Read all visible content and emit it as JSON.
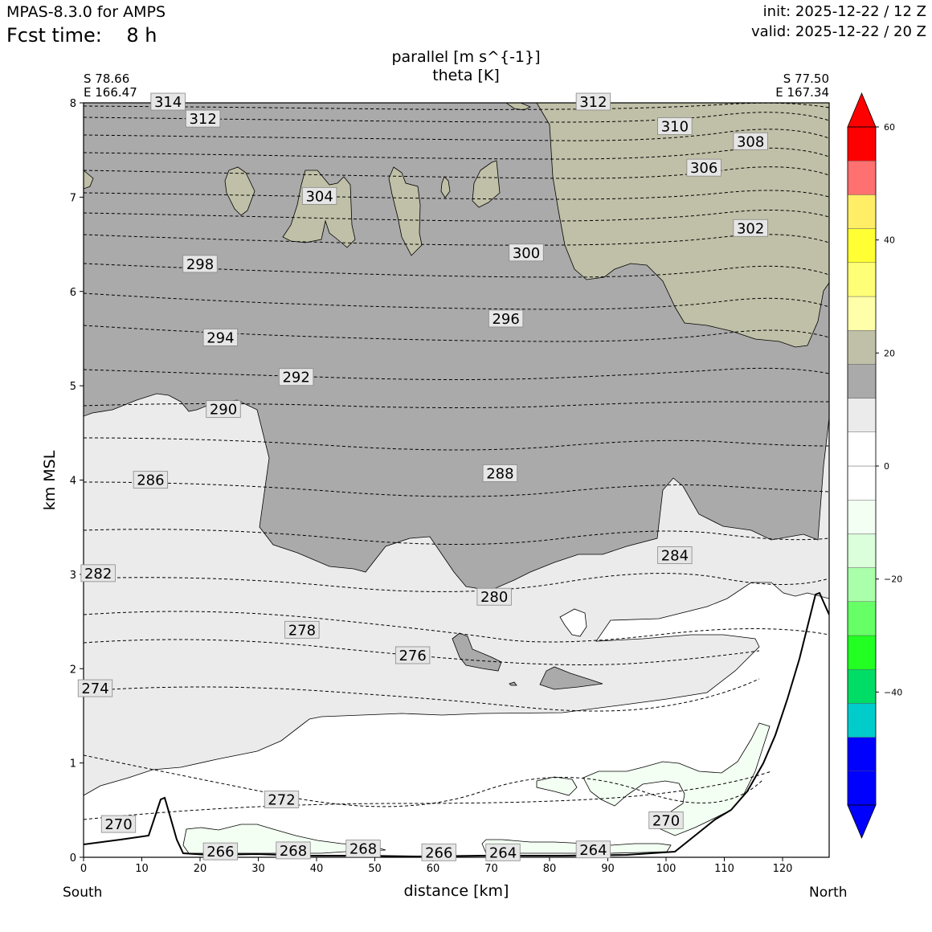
{
  "header": {
    "model": "MPAS-8.3.0 for AMPS",
    "fcst_time": "Fcst time:    8 h",
    "init": "init: 2025-12-22 / 12 Z",
    "valid": "valid: 2025-12-22 / 20 Z"
  },
  "chart_data": {
    "type": "contour",
    "title": "parallel [m s^{-1}]",
    "subtitle": "theta [K]",
    "xlabel": "distance [km]",
    "ylabel": "km MSL",
    "xlim": [
      0,
      128
    ],
    "ylim": [
      0,
      8
    ],
    "x_ticks": [
      0,
      10,
      20,
      30,
      40,
      50,
      60,
      70,
      80,
      90,
      100,
      110,
      120
    ],
    "y_ticks": [
      0,
      1,
      2,
      3,
      4,
      5,
      6,
      7,
      8
    ],
    "left_end": {
      "lat": "S 78.66",
      "lon": "E 166.47",
      "label": "South"
    },
    "right_end": {
      "lat": "S 77.50",
      "lon": "E 167.34",
      "label": "North"
    },
    "colorbar": {
      "ticks": [
        60,
        40,
        20,
        0,
        -20,
        -40
      ],
      "tick_labels": [
        "60",
        "40",
        "20",
        "0",
        "−20",
        "−40"
      ],
      "colors": [
        "#0000ff",
        "#0000ff",
        "#00cccc",
        "#00dd66",
        "#22ff22",
        "#66ff66",
        "#aaffaa",
        "#dbffdb",
        "#f3fff3",
        "#ffffff",
        "#ffffff",
        "#ebebeb",
        "#aaaaaa",
        "#c0c0a8",
        "#ffffaa",
        "#ffff77",
        "#ffff33",
        "#ffee66",
        "#ff7070",
        "#ff0000"
      ],
      "extend": "both"
    },
    "theta_labels": [
      {
        "value": "314",
        "x": 14.5,
        "y": 8.0
      },
      {
        "value": "312",
        "x": 20.5,
        "y": 7.82
      },
      {
        "value": "312",
        "x": 87.5,
        "y": 8.0
      },
      {
        "value": "310",
        "x": 101.5,
        "y": 7.74
      },
      {
        "value": "308",
        "x": 114.5,
        "y": 7.58
      },
      {
        "value": "306",
        "x": 106.5,
        "y": 7.3
      },
      {
        "value": "304",
        "x": 40.5,
        "y": 7.0
      },
      {
        "value": "302",
        "x": 114.5,
        "y": 6.66
      },
      {
        "value": "300",
        "x": 76.0,
        "y": 6.4
      },
      {
        "value": "298",
        "x": 20.0,
        "y": 6.28
      },
      {
        "value": "296",
        "x": 72.5,
        "y": 5.7
      },
      {
        "value": "294",
        "x": 23.5,
        "y": 5.5
      },
      {
        "value": "292",
        "x": 36.5,
        "y": 5.08
      },
      {
        "value": "290",
        "x": 24.0,
        "y": 4.74
      },
      {
        "value": "288",
        "x": 71.5,
        "y": 4.06
      },
      {
        "value": "286",
        "x": 11.5,
        "y": 3.99
      },
      {
        "value": "284",
        "x": 101.5,
        "y": 3.19
      },
      {
        "value": "282",
        "x": 2.5,
        "y": 3.0
      },
      {
        "value": "280",
        "x": 70.5,
        "y": 2.75
      },
      {
        "value": "278",
        "x": 37.5,
        "y": 2.4
      },
      {
        "value": "276",
        "x": 56.5,
        "y": 2.13
      },
      {
        "value": "274",
        "x": 2.0,
        "y": 1.78
      },
      {
        "value": "272",
        "x": 34.0,
        "y": 0.6
      },
      {
        "value": "270",
        "x": 6.0,
        "y": 0.34
      },
      {
        "value": "270",
        "x": 100.0,
        "y": 0.38
      },
      {
        "value": "268",
        "x": 36.0,
        "y": 0.06
      },
      {
        "value": "268",
        "x": 48.0,
        "y": 0.08
      },
      {
        "value": "266",
        "x": 23.5,
        "y": 0.05
      },
      {
        "value": "266",
        "x": 61.0,
        "y": 0.04
      },
      {
        "value": "264",
        "x": 72.0,
        "y": 0.04
      },
      {
        "value": "264",
        "x": 87.5,
        "y": 0.07
      }
    ]
  }
}
